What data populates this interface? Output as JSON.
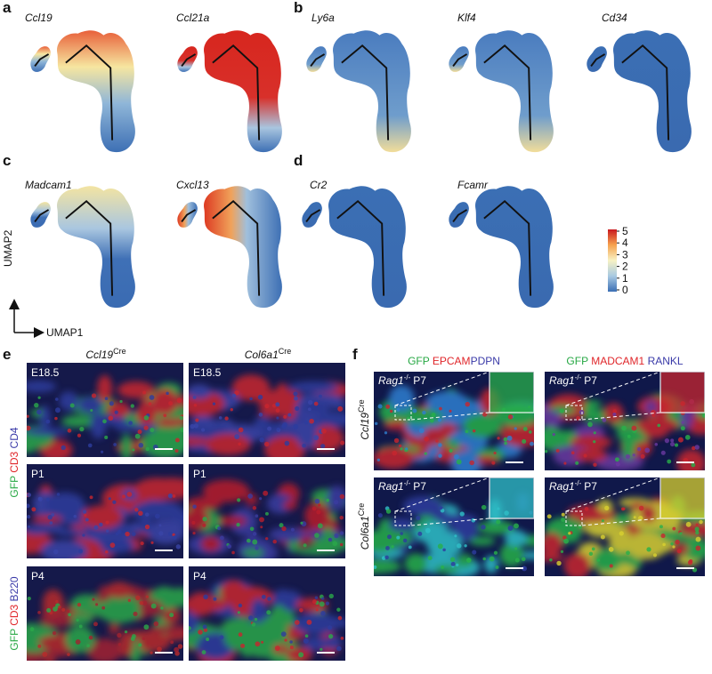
{
  "panels": [
    {
      "label": "a",
      "genes": [
        "Ccl19",
        "Ccl21a"
      ]
    },
    {
      "label": "b",
      "genes": [
        "Ly6a",
        "Klf4",
        "Cd34"
      ]
    },
    {
      "label": "c",
      "genes": [
        "Madcam1",
        "Cxcl13"
      ]
    },
    {
      "label": "d",
      "genes": [
        "Cr2",
        "Fcamr"
      ]
    }
  ],
  "colorbar": {
    "ticks": [
      5,
      4,
      3,
      2,
      1,
      0
    ]
  },
  "axes": {
    "y": "UMAP2",
    "x": "UMAP1"
  },
  "e": {
    "label": "e",
    "columns": [
      {
        "gene": "Ccl19",
        "sup": "Cre"
      },
      {
        "gene": "Col6a1",
        "sup": "Cre"
      }
    ],
    "stains": [
      [
        "GFP",
        "CD3",
        "CD4"
      ],
      [
        "GFP",
        "CD3",
        "B220"
      ]
    ],
    "stages": [
      [
        "E18.5",
        "E18.5"
      ],
      [
        "P1",
        "P1"
      ],
      [
        "P4",
        "P4"
      ]
    ]
  },
  "f": {
    "label": "f",
    "stains": [
      [
        "GFP",
        "EPCAM",
        "PDPN"
      ],
      [
        "GFP",
        "MADCAM1",
        "RANKL"
      ]
    ],
    "rows": [
      {
        "gene": "Ccl19",
        "sup": "Cre"
      },
      {
        "gene": "Col6a1",
        "sup": "Cre"
      }
    ],
    "tag": {
      "gene": "Rag1",
      "sup": "-/-",
      "stage": "P7"
    }
  }
}
